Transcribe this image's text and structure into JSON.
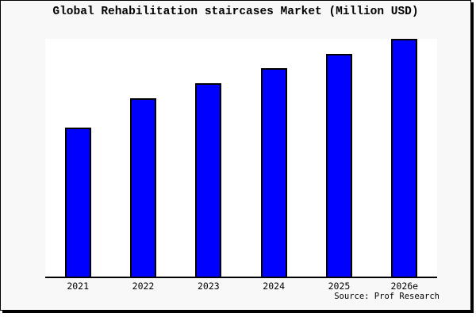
{
  "title": "Global Rehabilitation staircases Market (Million USD)",
  "source_credit": "Source: Prof Research",
  "colors": {
    "bar_fill": "#0000ff",
    "bar_border": "#000000",
    "frame_background": "#f8f8f8",
    "plot_background": "#ffffff",
    "axis_line": "#000000",
    "text": "#000000"
  },
  "chart_data": {
    "type": "bar",
    "title": "Global Rehabilitation staircases Market (Million USD)",
    "categories": [
      "2021",
      "2022",
      "2023",
      "2024",
      "2025",
      "2026e"
    ],
    "values": [
      62.8,
      75.1,
      81.4,
      87.7,
      93.7,
      100
    ],
    "xlabel": "",
    "ylabel": "",
    "ylim": [
      0,
      100
    ],
    "y_axis_labels_shown": false,
    "values_note": "y-axis is unlabeled; values are relative bar heights with tallest bar (2026e) = 100",
    "grid": false,
    "legend": null,
    "annotations": [
      "Source: Prof Research"
    ]
  }
}
